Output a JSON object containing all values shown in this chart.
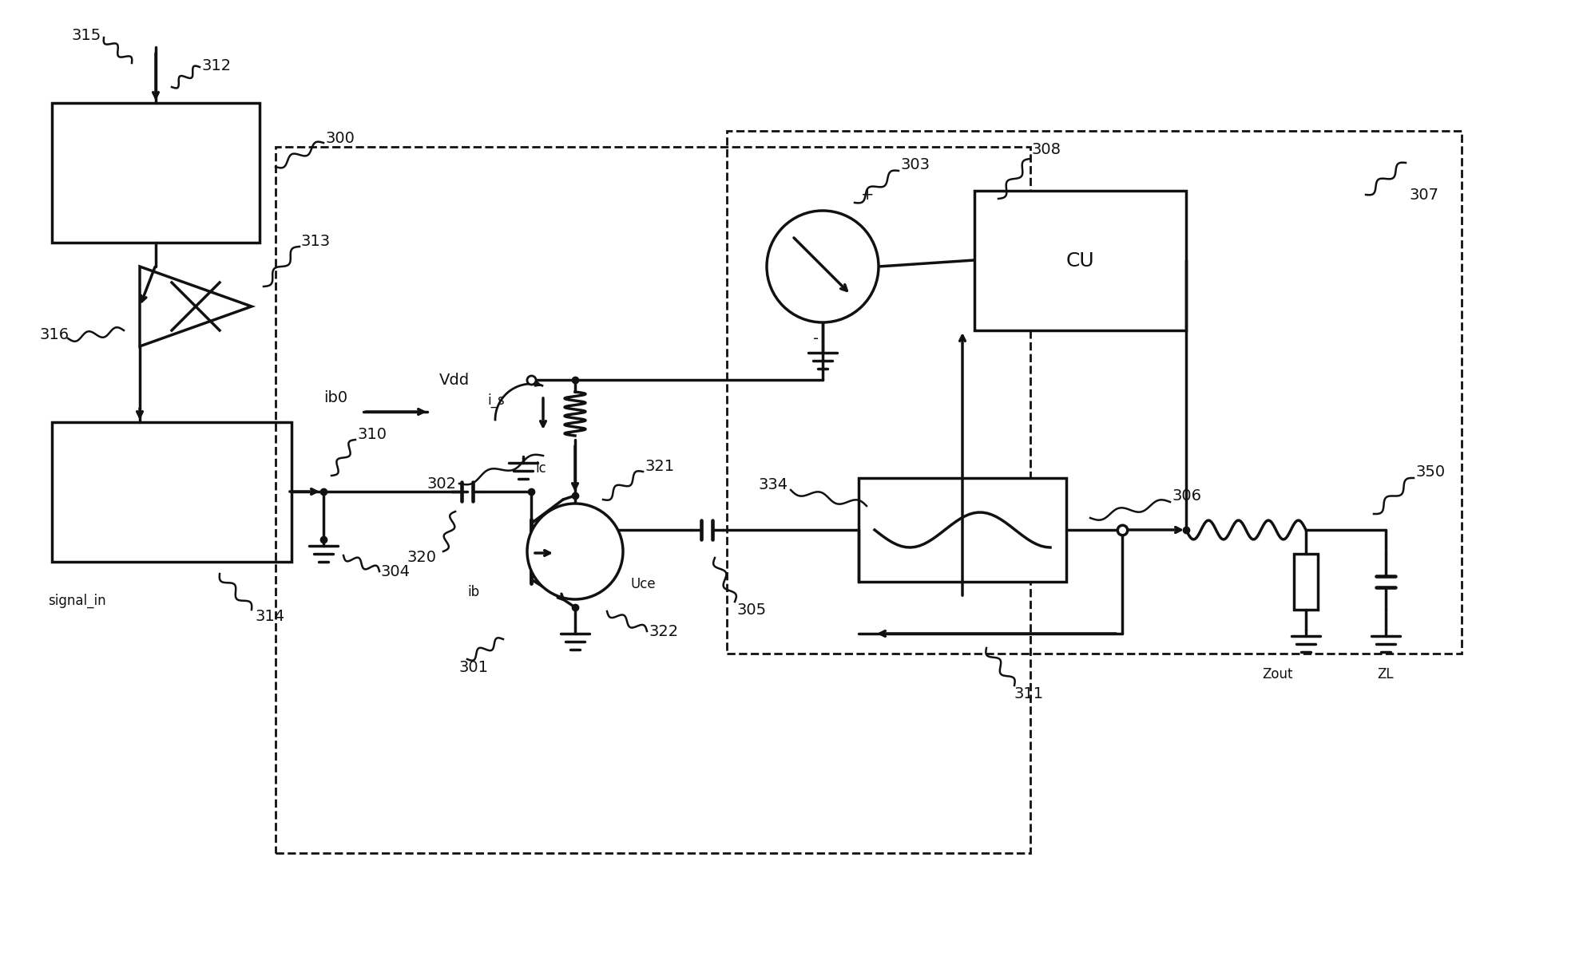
{
  "bg_color": "#ffffff",
  "line_color": "#111111",
  "fig_width": 19.78,
  "fig_height": 11.84,
  "lw": 2.0,
  "fs": 14,
  "fs_small": 12
}
